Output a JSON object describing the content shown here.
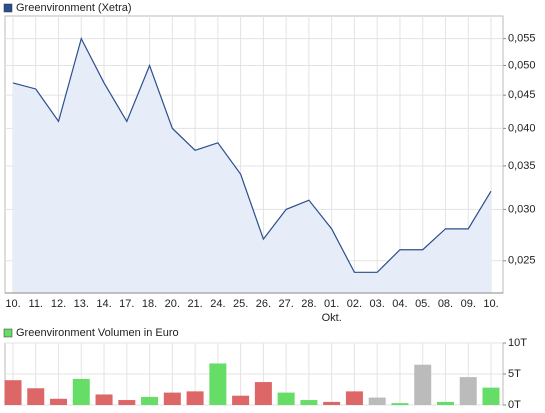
{
  "chart_data": [
    {
      "type": "line",
      "title": "Greenvironment (Xetra)",
      "categories": [
        "10.",
        "11.",
        "12.",
        "13.",
        "14.",
        "17.",
        "18.",
        "20.",
        "21.",
        "24.",
        "25.",
        "26.",
        "27.",
        "28.",
        "01.",
        "02.",
        "03.",
        "04.",
        "05.",
        "08.",
        "09.",
        "10."
      ],
      "values": [
        0.047,
        0.046,
        0.041,
        0.055,
        0.047,
        0.041,
        0.05,
        0.04,
        0.037,
        0.038,
        0.034,
        0.027,
        0.03,
        0.031,
        0.028,
        0.024,
        0.024,
        0.026,
        0.026,
        0.028,
        0.028,
        0.032
      ],
      "color": "#2b4f8c",
      "fill": "#e6ecf8",
      "log_scale": true,
      "grid": true,
      "ylim": [
        0.0223,
        0.0596
      ],
      "yticks": [
        {
          "value": 0.025,
          "label": "0,025"
        },
        {
          "value": 0.03,
          "label": "0,030"
        },
        {
          "value": 0.035,
          "label": "0,035"
        },
        {
          "value": 0.04,
          "label": "0,040"
        },
        {
          "value": 0.045,
          "label": "0,045"
        },
        {
          "value": 0.05,
          "label": "0,050"
        },
        {
          "value": 0.055,
          "label": "0,055"
        }
      ],
      "month_label": {
        "text": "Okt.",
        "category_index": 14
      }
    },
    {
      "type": "bar",
      "title": "Greenvironment Volumen in Euro",
      "color": "#66dd66",
      "values": [
        4000,
        2700,
        1000,
        4200,
        1700,
        800,
        1300,
        2000,
        2200,
        6700,
        1500,
        3700,
        2000,
        800,
        500,
        2200,
        1200,
        300,
        6500,
        500,
        4500,
        2800
      ],
      "colors": [
        "#dd6666",
        "#dd6666",
        "#dd6666",
        "#66dd66",
        "#dd6666",
        "#dd6666",
        "#66dd66",
        "#dd6666",
        "#dd6666",
        "#66dd66",
        "#dd6666",
        "#dd6666",
        "#66dd66",
        "#66dd66",
        "#dd6666",
        "#dd6666",
        "#bbbbbb",
        "#66dd66",
        "#bbbbbb",
        "#66dd66",
        "#bbbbbb",
        "#66dd66"
      ],
      "grid": true,
      "ylim": [
        0,
        10000
      ],
      "yticks": [
        {
          "value": 0,
          "label": "0T"
        },
        {
          "value": 5000,
          "label": "5T"
        },
        {
          "value": 10000,
          "label": "10T"
        }
      ]
    }
  ]
}
